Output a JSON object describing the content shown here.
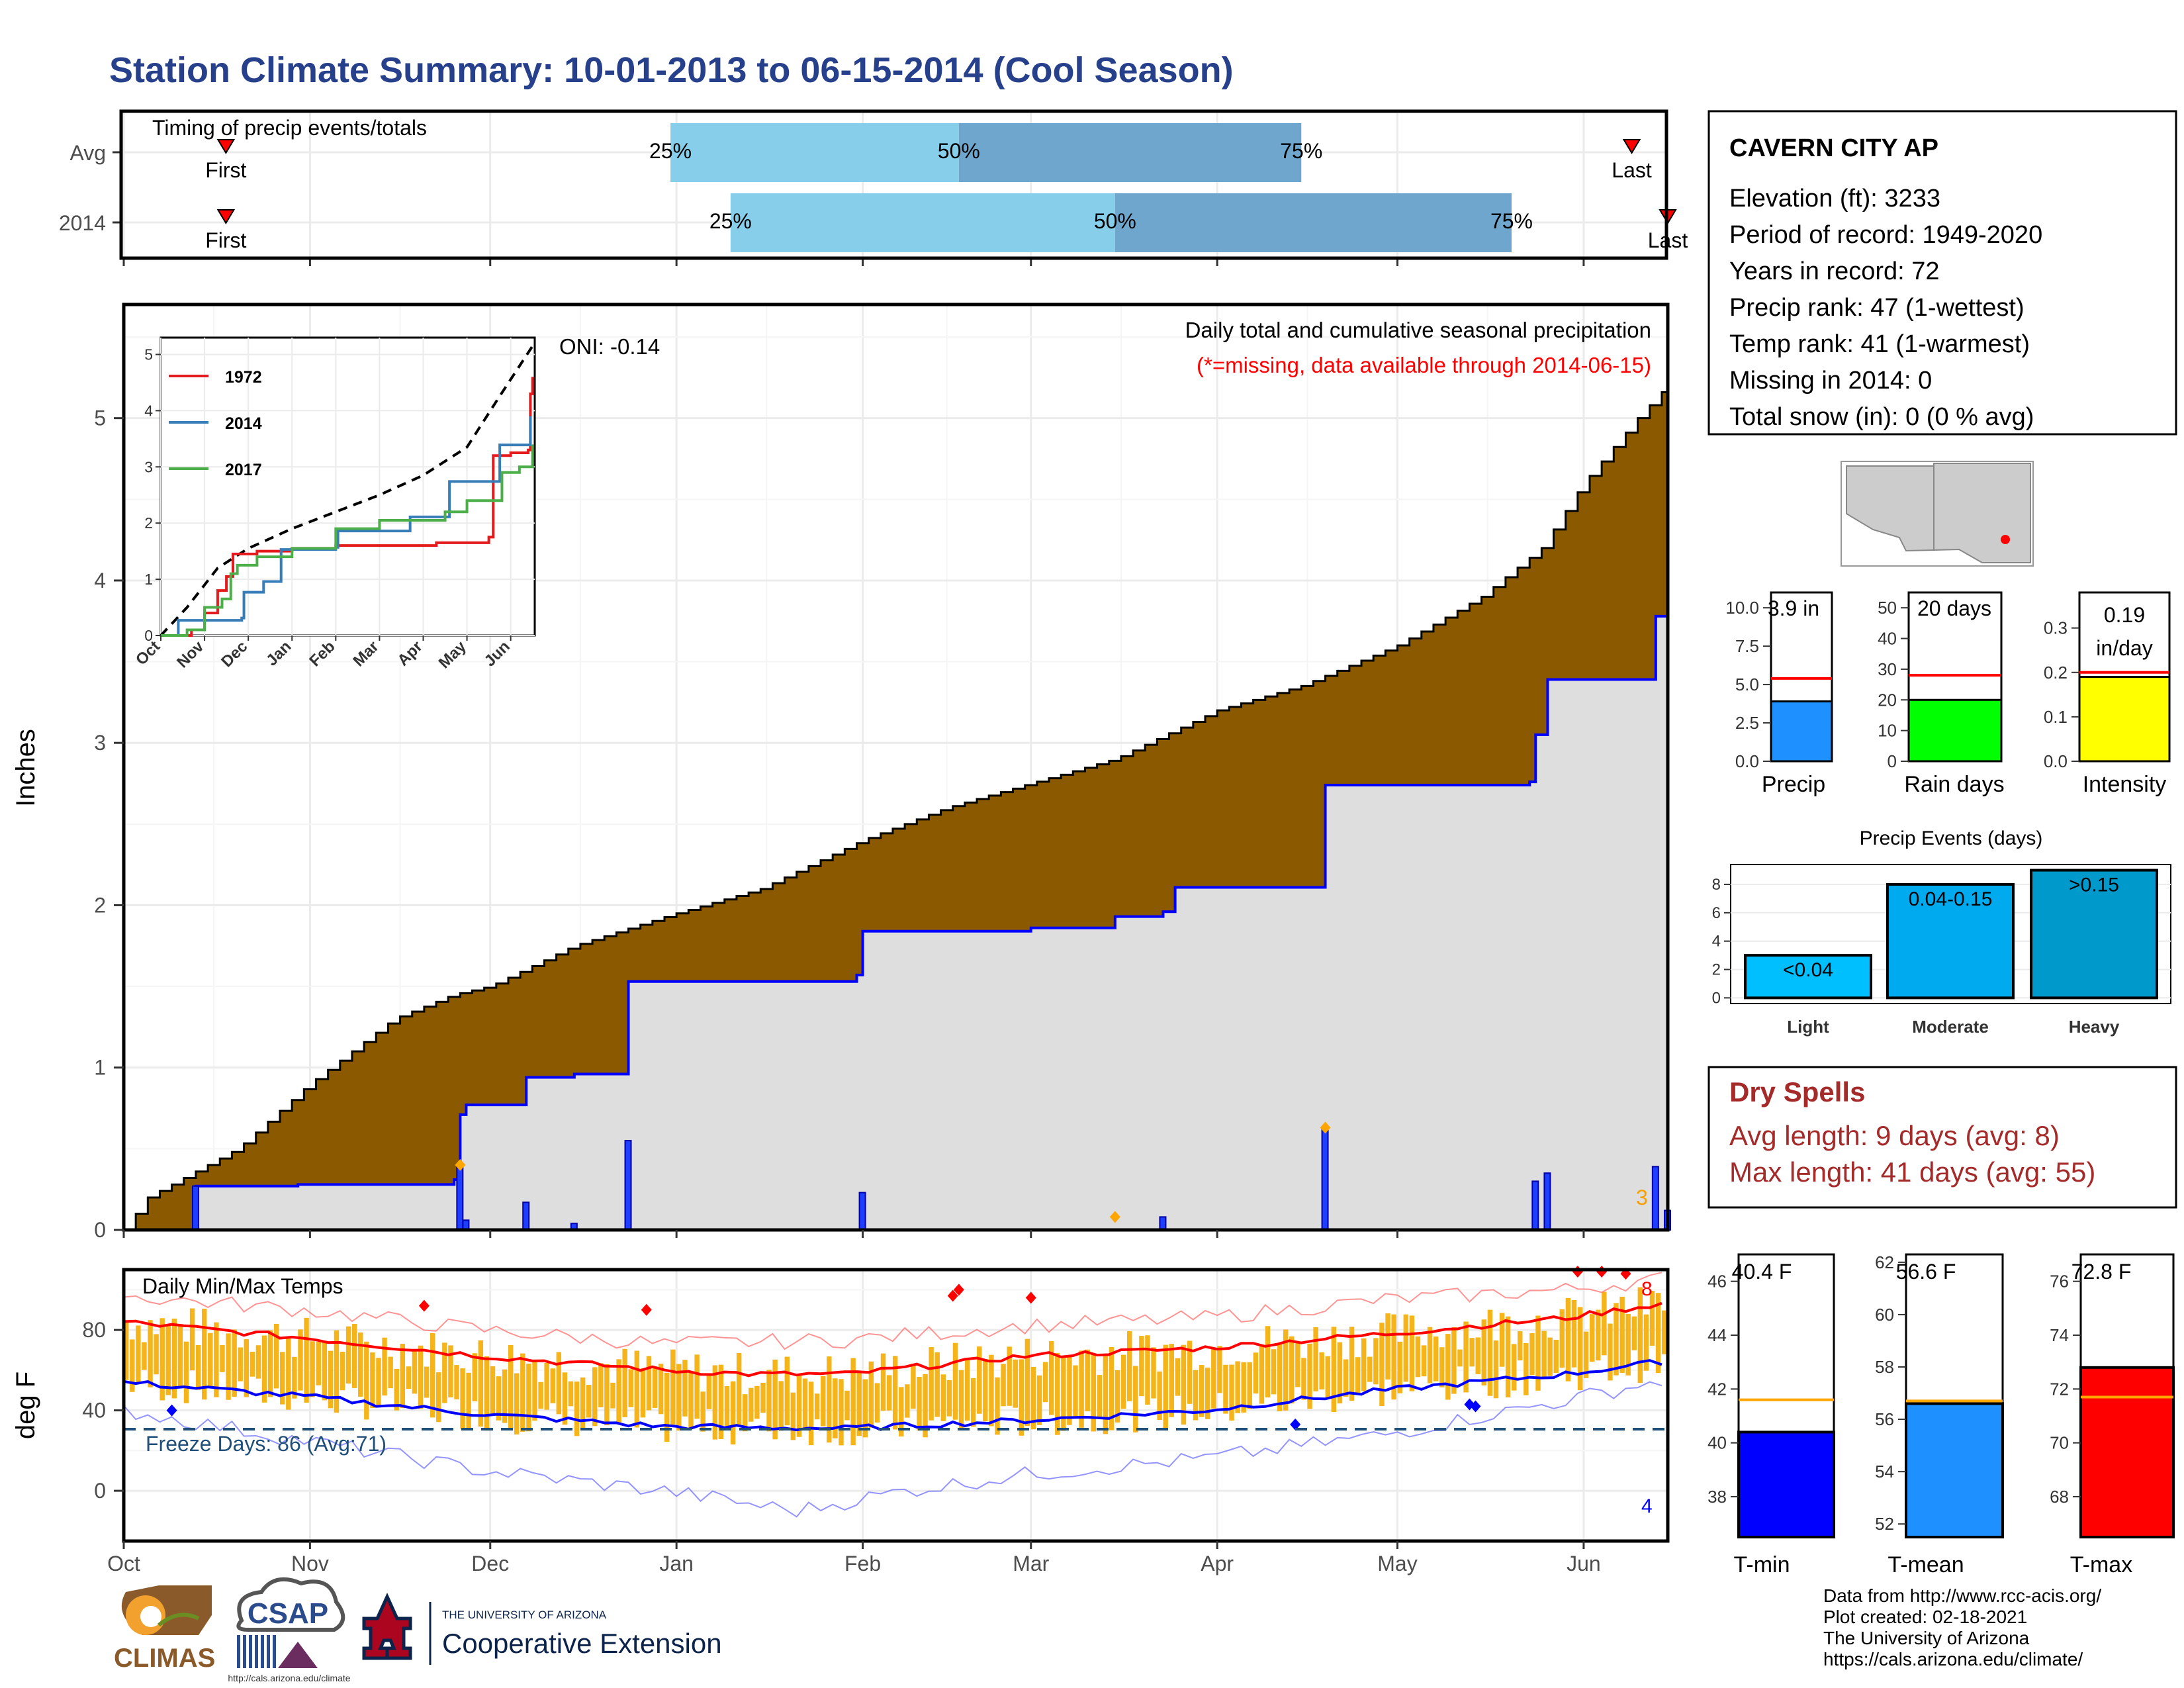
{
  "page": {
    "title": "Station Climate Summary: 10-01-2013 to 06-15-2014 (Cool Season)",
    "credits": [
      "Data from http://www.rcc-acis.org/",
      "Plot created: 02-18-2021",
      "The University of Arizona",
      "https://cals.arizona.edu/climate/"
    ],
    "logos": {
      "climas": "CLIMAS",
      "csap": "CSAP",
      "csap_url": "http://cals.arizona.edu/climate",
      "ua_line1": "THE UNIVERSITY OF ARIZONA",
      "ua_line2": "Cooperative Extension"
    }
  },
  "colors": {
    "title": "#27408b",
    "brown": "#8b5a00",
    "grey_fill": "#dedede",
    "blue": "#0000ff",
    "sky1": "#87ceeb",
    "sky2": "#6ea6cd",
    "orange": "#f4b41a",
    "red": "#ff0000",
    "dry_text": "#a52a2a"
  },
  "station": {
    "name": "CAVERN CITY AP",
    "lines": [
      "Elevation (ft): 3233",
      "Period of record: 1949-2020",
      "Years in record: 72",
      "Precip rank: 47 (1-wettest)",
      "Temp rank: 41 (1-warmest)",
      "Missing in 2014: 0",
      "Total snow (in): 0 (0 % avg)"
    ]
  },
  "x_months": [
    "Oct",
    "Nov",
    "Dec",
    "Jan",
    "Feb",
    "Mar",
    "Apr",
    "May",
    "Jun"
  ],
  "timing": {
    "label": "Timing of precip events/totals",
    "rows": [
      "Avg",
      "2014"
    ],
    "first": "First",
    "last": "Last",
    "pct": [
      "25%",
      "50%",
      "75%"
    ]
  },
  "precip": {
    "y_label": "Inches",
    "y_ticks": [
      "0",
      "1",
      "2",
      "3",
      "4",
      "5"
    ],
    "annot_title": "Daily total and cumulative seasonal precipitation",
    "annot_missing": "(*=missing, data available through 2014-06-15)",
    "oni": "ONI: -0.14",
    "corner_count": "3"
  },
  "inset": {
    "y_ticks": [
      "0",
      "1",
      "2",
      "3",
      "4",
      "5"
    ],
    "x_ticks": [
      "Oct",
      "Nov",
      "Dec",
      "Jan",
      "Feb",
      "Mar",
      "Apr",
      "May",
      "Jun"
    ],
    "legend": [
      "1972",
      "2014",
      "2017"
    ]
  },
  "temp": {
    "y_label": "deg F",
    "y_ticks": [
      "0",
      "40",
      "80"
    ],
    "label": "Daily Min/Max Temps",
    "freeze": "Freeze Days: 86 (Avg:71)",
    "max_count": "8",
    "min_count": "4"
  },
  "bars_precip": {
    "ticks1": [
      "0.0",
      "2.5",
      "5.0",
      "7.5",
      "10.0"
    ],
    "ticks2": [
      "0",
      "10",
      "20",
      "30",
      "40",
      "50"
    ],
    "ticks3": [
      "0.0",
      "0.1",
      "0.2",
      "0.3"
    ],
    "v1": "3.9 in",
    "v2": "20 days",
    "v3a": "0.19",
    "v3b": "in/day",
    "l1": "Precip",
    "l2": "Rain days",
    "l3": "Intensity"
  },
  "events": {
    "title": "Precip Events (days)",
    "y_ticks": [
      "0",
      "2",
      "4",
      "6",
      "8"
    ],
    "cats": [
      "Light",
      "Moderate",
      "Heavy"
    ],
    "labels": [
      "<0.04",
      "0.04-0.15",
      ">0.15"
    ]
  },
  "dry": {
    "title": "Dry Spells",
    "avg": "Avg length: 9 days (avg: 8)",
    "max": "Max length: 41 days (avg: 55)"
  },
  "bars_temp": {
    "ticks1": [
      "38",
      "40",
      "42",
      "44",
      "46"
    ],
    "ticks2": [
      "52",
      "54",
      "56",
      "58",
      "60",
      "62"
    ],
    "ticks3": [
      "68",
      "70",
      "72",
      "74",
      "76"
    ],
    "v1": "40.4 F",
    "v2": "56.6 F",
    "v3": "72.8 F",
    "l1": "T-min",
    "l2": "T-mean",
    "l3": "T-max"
  },
  "chart_data": [
    {
      "id": "timing",
      "type": "bar",
      "title": "Timing of precip events/totals",
      "categories": [
        "Avg",
        "2014"
      ],
      "series": [
        {
          "name": "Avg",
          "first": "2013-10-18",
          "p25": "2013-12-31",
          "p50": "2014-02-17",
          "p75": "2014-04-15",
          "last": "2014-06-09"
        },
        {
          "name": "2014",
          "first": "2013-10-18",
          "p25": "2014-01-10",
          "p50": "2014-03-15",
          "p75": "2014-05-20",
          "last": "2014-06-15"
        }
      ]
    },
    {
      "id": "precip",
      "type": "area",
      "ylabel": "Inches",
      "ylim": [
        0,
        5.7
      ],
      "x_range": [
        "2013-10-01",
        "2014-06-15"
      ],
      "avg_cumulative": [
        [
          "2013-10-01",
          0
        ],
        [
          "2013-10-05",
          0.2
        ],
        [
          "2013-10-20",
          0.5
        ],
        [
          "2013-11-01",
          0.9
        ],
        [
          "2013-11-15",
          1.3
        ],
        [
          "2013-11-25",
          1.45
        ],
        [
          "2013-12-01",
          1.5
        ],
        [
          "2013-12-15",
          1.75
        ],
        [
          "2014-01-01",
          1.95
        ],
        [
          "2014-01-15",
          2.1
        ],
        [
          "2014-02-01",
          2.4
        ],
        [
          "2014-02-15",
          2.6
        ],
        [
          "2014-03-01",
          2.75
        ],
        [
          "2014-03-15",
          2.9
        ],
        [
          "2014-04-01",
          3.2
        ],
        [
          "2014-04-15",
          3.35
        ],
        [
          "2014-05-01",
          3.6
        ],
        [
          "2014-05-15",
          3.9
        ],
        [
          "2014-05-25",
          4.2
        ],
        [
          "2014-06-01",
          4.6
        ],
        [
          "2014-06-10",
          5.0
        ],
        [
          "2014-06-15",
          5.2
        ]
      ],
      "cumulative_2014": [
        [
          "2013-10-01",
          0
        ],
        [
          "2013-10-12",
          0
        ],
        [
          "2013-10-13",
          0.27
        ],
        [
          "2013-10-30",
          0.28
        ],
        [
          "2013-11-25",
          0.31
        ],
        [
          "2013-11-26",
          0.71
        ],
        [
          "2013-11-27",
          0.77
        ],
        [
          "2013-12-06",
          0.77
        ],
        [
          "2013-12-07",
          0.94
        ],
        [
          "2013-12-14",
          0.94
        ],
        [
          "2013-12-15",
          0.96
        ],
        [
          "2013-12-23",
          0.96
        ],
        [
          "2013-12-24",
          1.53
        ],
        [
          "2014-01-31",
          1.57
        ],
        [
          "2014-02-01",
          1.84
        ],
        [
          "2014-03-01",
          1.86
        ],
        [
          "2014-03-15",
          1.93
        ],
        [
          "2014-03-23",
          1.96
        ],
        [
          "2014-03-25",
          2.11
        ],
        [
          "2014-04-18",
          2.11
        ],
        [
          "2014-04-19",
          2.74
        ],
        [
          "2014-05-23",
          2.76
        ],
        [
          "2014-05-24",
          3.05
        ],
        [
          "2014-05-26",
          3.39
        ],
        [
          "2014-06-12",
          3.39
        ],
        [
          "2014-06-13",
          3.78
        ],
        [
          "2014-06-15",
          3.9
        ]
      ],
      "daily_2014": [
        [
          "2013-10-13",
          0.27
        ],
        [
          "2013-11-26",
          0.4
        ],
        [
          "2013-11-27",
          0.06
        ],
        [
          "2013-12-07",
          0.17
        ],
        [
          "2013-12-15",
          0.04
        ],
        [
          "2013-12-24",
          0.55
        ],
        [
          "2014-02-01",
          0.23
        ],
        [
          "2014-03-23",
          0.08
        ],
        [
          "2014-04-19",
          0.63
        ],
        [
          "2014-05-24",
          0.3
        ],
        [
          "2014-05-26",
          0.35
        ],
        [
          "2014-06-13",
          0.39
        ],
        [
          "2014-06-15",
          0.12
        ]
      ],
      "annotations": [
        "Daily total and cumulative seasonal precipitation",
        "(*=missing, data available through 2014-06-15)",
        "ONI: -0.14",
        "3"
      ]
    },
    {
      "id": "inset_analog",
      "type": "line",
      "ylim": [
        0,
        5.3
      ],
      "categories": [
        "Oct",
        "Nov",
        "Dec",
        "Jan",
        "Feb",
        "Mar",
        "Apr",
        "May",
        "Jun"
      ],
      "series": [
        {
          "name": "avg",
          "style": "dashed",
          "points": [
            [
              0,
              0
            ],
            [
              0.6,
              0.5
            ],
            [
              1.3,
              1.2
            ],
            [
              2,
              1.55
            ],
            [
              3,
              1.9
            ],
            [
              4,
              2.2
            ],
            [
              5,
              2.5
            ],
            [
              6,
              2.85
            ],
            [
              7,
              3.35
            ],
            [
              7.7,
              4.2
            ],
            [
              8.5,
              5.15
            ]
          ]
        },
        {
          "name": "1972",
          "points": [
            [
              0,
              0
            ],
            [
              0.7,
              0.1
            ],
            [
              1,
              0.4
            ],
            [
              1.3,
              0.8
            ],
            [
              1.5,
              1.05
            ],
            [
              1.65,
              1.45
            ],
            [
              2.2,
              1.5
            ],
            [
              3,
              1.55
            ],
            [
              4,
              1.6
            ],
            [
              5,
              1.6
            ],
            [
              6.3,
              1.65
            ],
            [
              7.5,
              1.75
            ],
            [
              7.6,
              3.2
            ],
            [
              8,
              3.25
            ],
            [
              8.4,
              3.3
            ],
            [
              8.45,
              4.3
            ],
            [
              8.5,
              4.6
            ]
          ]
        },
        {
          "name": "2014",
          "points": [
            [
              0,
              0
            ],
            [
              0.4,
              0.27
            ],
            [
              1.85,
              0.31
            ],
            [
              1.9,
              0.77
            ],
            [
              2.35,
              0.96
            ],
            [
              2.75,
              1.53
            ],
            [
              4,
              1.57
            ],
            [
              4.05,
              1.86
            ],
            [
              5.7,
              2.11
            ],
            [
              6.6,
              2.74
            ],
            [
              7.75,
              3.39
            ],
            [
              8.4,
              3.39
            ],
            [
              8.45,
              3.9
            ]
          ]
        },
        {
          "name": "2017",
          "points": [
            [
              0,
              0
            ],
            [
              0.6,
              0.1
            ],
            [
              1,
              0.5
            ],
            [
              1.4,
              0.65
            ],
            [
              1.6,
              1.1
            ],
            [
              1.75,
              1.25
            ],
            [
              2.2,
              1.4
            ],
            [
              3,
              1.55
            ],
            [
              4,
              1.9
            ],
            [
              5,
              2.05
            ],
            [
              6.5,
              2.2
            ],
            [
              7,
              2.4
            ],
            [
              7.8,
              2.9
            ],
            [
              8.2,
              3.0
            ],
            [
              8.5,
              3.4
            ]
          ]
        }
      ]
    },
    {
      "id": "temps",
      "type": "line",
      "ylabel": "deg F",
      "ylim": [
        -25,
        110
      ],
      "x_range": [
        "2013-10-01",
        "2014-06-15"
      ],
      "series": [
        {
          "name": "avg max",
          "points": [
            [
              0,
              84
            ],
            [
              30,
              76
            ],
            [
              60,
              67
            ],
            [
              90,
              60
            ],
            [
              105,
              58
            ],
            [
              120,
              58
            ],
            [
              150,
              67
            ],
            [
              180,
              71
            ],
            [
              210,
              78
            ],
            [
              240,
              86
            ],
            [
              258,
              94
            ]
          ]
        },
        {
          "name": "avg min",
          "points": [
            [
              0,
              54
            ],
            [
              30,
              47
            ],
            [
              60,
              38
            ],
            [
              90,
              32
            ],
            [
              120,
              31
            ],
            [
              150,
              35
            ],
            [
              180,
              40
            ],
            [
              210,
              50
            ],
            [
              240,
              58
            ],
            [
              258,
              65
            ]
          ]
        },
        {
          "name": "record max",
          "points": [
            [
              0,
              97
            ],
            [
              30,
              90
            ],
            [
              60,
              80
            ],
            [
              90,
              73
            ],
            [
              120,
              75
            ],
            [
              150,
              82
            ],
            [
              180,
              86
            ],
            [
              210,
              95
            ],
            [
              240,
              100
            ],
            [
              258,
              106
            ]
          ]
        },
        {
          "name": "record min",
          "points": [
            [
              0,
              40
            ],
            [
              30,
              25
            ],
            [
              60,
              10
            ],
            [
              90,
              0
            ],
            [
              112,
              -10
            ],
            [
              130,
              0
            ],
            [
              150,
              8
            ],
            [
              180,
              16
            ],
            [
              210,
              28
            ],
            [
              240,
              45
            ],
            [
              258,
              56
            ]
          ]
        }
      ],
      "freeze_line": 32,
      "annotations": [
        "Daily Min/Max Temps",
        "Freeze Days: 86 (Avg:71)",
        "8",
        "4"
      ]
    },
    {
      "id": "precip_bars",
      "type": "bar",
      "categories": [
        "Precip",
        "Rain days",
        "Intensity"
      ],
      "values": [
        3.9,
        20,
        0.19
      ],
      "averages": [
        5.4,
        28,
        0.2
      ],
      "ylims": [
        [
          0,
          11
        ],
        [
          0,
          55
        ],
        [
          0,
          0.38
        ]
      ]
    },
    {
      "id": "precip_events",
      "type": "bar",
      "title": "Precip Events (days)",
      "categories": [
        "Light",
        "Moderate",
        "Heavy"
      ],
      "values": [
        3,
        8,
        9
      ],
      "ylim": [
        -0.4,
        9.4
      ]
    },
    {
      "id": "temp_bars",
      "type": "bar",
      "categories": [
        "T-min",
        "T-mean",
        "T-max"
      ],
      "values": [
        40.4,
        56.6,
        72.8
      ],
      "averages": [
        41.6,
        56.7,
        71.7
      ],
      "ylims": [
        [
          36.5,
          47
        ],
        [
          51.5,
          62.3
        ],
        [
          66.5,
          77
        ]
      ]
    }
  ]
}
